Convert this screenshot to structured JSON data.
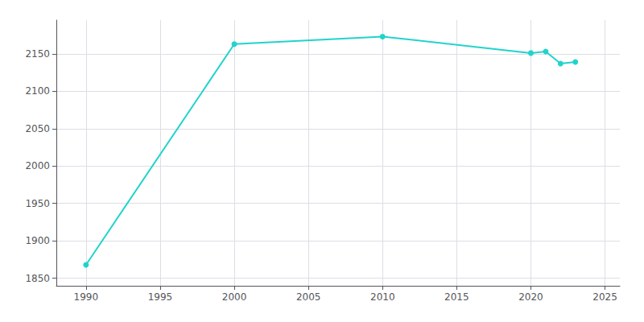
{
  "chart_data": {
    "type": "line",
    "x": [
      1990,
      2000,
      2010,
      2020,
      2021,
      2022,
      2023
    ],
    "values": [
      1868,
      2163,
      2173,
      2151,
      2153,
      2137,
      2139
    ],
    "color": "#22d3cc",
    "marker": "circle",
    "xlim": [
      1988,
      2026
    ],
    "ylim": [
      1840,
      2195
    ],
    "xticks": [
      1990,
      1995,
      2000,
      2005,
      2010,
      2015,
      2020,
      2025
    ],
    "yticks": [
      1850,
      1900,
      1950,
      2000,
      2050,
      2100,
      2150
    ],
    "grid": true
  }
}
